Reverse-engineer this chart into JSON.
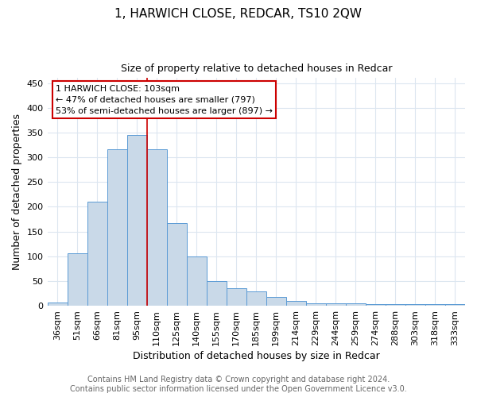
{
  "title": "1, HARWICH CLOSE, REDCAR, TS10 2QW",
  "subtitle": "Size of property relative to detached houses in Redcar",
  "xlabel": "Distribution of detached houses by size in Redcar",
  "ylabel": "Number of detached properties",
  "bin_labels": [
    "36sqm",
    "51sqm",
    "66sqm",
    "81sqm",
    "95sqm",
    "110sqm",
    "125sqm",
    "140sqm",
    "155sqm",
    "170sqm",
    "185sqm",
    "199sqm",
    "214sqm",
    "229sqm",
    "244sqm",
    "259sqm",
    "274sqm",
    "288sqm",
    "303sqm",
    "318sqm",
    "333sqm"
  ],
  "bar_heights": [
    6,
    106,
    210,
    316,
    345,
    316,
    167,
    99,
    50,
    35,
    29,
    18,
    10,
    5,
    5,
    5,
    3,
    3,
    3,
    3,
    3
  ],
  "bar_color": "#c9d9e8",
  "bar_edge_color": "#5b9bd5",
  "vline_x": 4.5,
  "annotation_title": "1 HARWICH CLOSE: 103sqm",
  "annotation_line1": "← 47% of detached houses are smaller (797)",
  "annotation_line2": "53% of semi-detached houses are larger (897) →",
  "annotation_box_color": "#ffffff",
  "annotation_box_edge": "#cc0000",
  "vline_color": "#cc0000",
  "footer_line1": "Contains HM Land Registry data © Crown copyright and database right 2024.",
  "footer_line2": "Contains public sector information licensed under the Open Government Licence v3.0.",
  "ylim": [
    0,
    460
  ],
  "yticks": [
    0,
    50,
    100,
    150,
    200,
    250,
    300,
    350,
    400,
    450
  ],
  "grid_color": "#dce6f0",
  "title_fontsize": 11,
  "subtitle_fontsize": 9,
  "xlabel_fontsize": 9,
  "ylabel_fontsize": 9,
  "tick_fontsize": 8,
  "footer_fontsize": 7,
  "ann_fontsize": 8
}
